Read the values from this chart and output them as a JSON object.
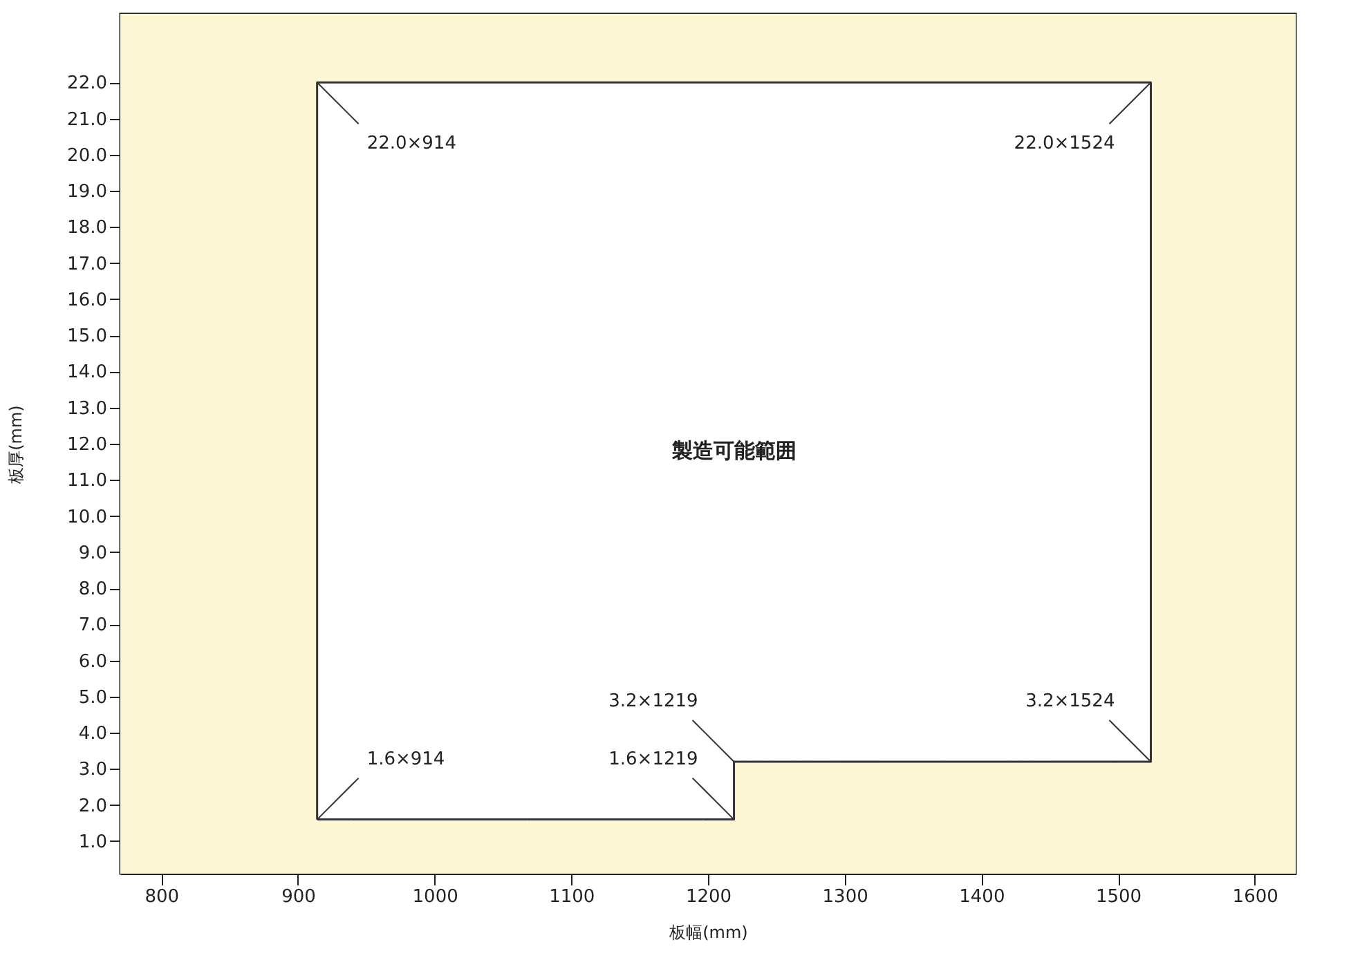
{
  "chart_data": {
    "type": "area",
    "xlabel": "板幅(mm)",
    "ylabel": "板厚(mm)",
    "series": [
      {
        "color": "#333333",
        "x": [
          914,
          1219,
          1219,
          1524,
          1524,
          914,
          914
        ],
        "values": [
          1.6,
          1.6,
          3.2,
          3.2,
          22.0,
          22.0,
          1.6
        ]
      }
    ],
    "xlim": [
      770,
      1630
    ],
    "xticks": [
      800,
      900,
      1000,
      1100,
      1200,
      1300,
      1400,
      1500,
      1600
    ],
    "ylim": [
      0.1,
      23.9
    ],
    "yticks": [
      {
        "value": 1,
        "label": "1.0"
      },
      {
        "value": 2,
        "label": "2.0"
      },
      {
        "value": 3,
        "label": "3.0"
      },
      {
        "value": 4,
        "label": "4.0"
      },
      {
        "value": 5,
        "label": "5.0"
      },
      {
        "value": 6,
        "label": "6.0"
      },
      {
        "value": 7,
        "label": "7.0"
      },
      {
        "value": 8,
        "label": "8.0"
      },
      {
        "value": 9,
        "label": "9.0"
      },
      {
        "value": 10,
        "label": "10.0"
      },
      {
        "value": 11,
        "label": "11.0"
      },
      {
        "value": 12,
        "label": "12.0"
      },
      {
        "value": 13,
        "label": "13.0"
      },
      {
        "value": 14,
        "label": "14.0"
      },
      {
        "value": 15,
        "label": "15.0"
      },
      {
        "value": 16,
        "label": "16.0"
      },
      {
        "value": 17,
        "label": "17.0"
      },
      {
        "value": 18,
        "label": "18.0"
      },
      {
        "value": 19,
        "label": "19.0"
      },
      {
        "value": 20,
        "label": "20.0"
      },
      {
        "value": 21,
        "label": "21.0"
      },
      {
        "value": 22,
        "label": "22.0"
      }
    ],
    "annotations": [
      {
        "text": "22.0×914",
        "x": 914,
        "y": 22.0
      },
      {
        "text": "22.0×1524",
        "x": 1524,
        "y": 22.0
      },
      {
        "text": "1.6×914",
        "x": 914,
        "y": 1.6
      },
      {
        "text": "1.6×1219",
        "x": 1219,
        "y": 1.6
      },
      {
        "text": "3.2×1219",
        "x": 1219,
        "y": 3.2
      },
      {
        "text": "3.2×1524",
        "x": 1524,
        "y": 3.2
      },
      "製造可能範囲"
    ],
    "bands": [
      {
        "axis": "y",
        "from": 0.1,
        "to": 23.9,
        "color": "#fef7d5"
      }
    ],
    "grid": false,
    "marker": "none",
    "line_style": "solid"
  }
}
